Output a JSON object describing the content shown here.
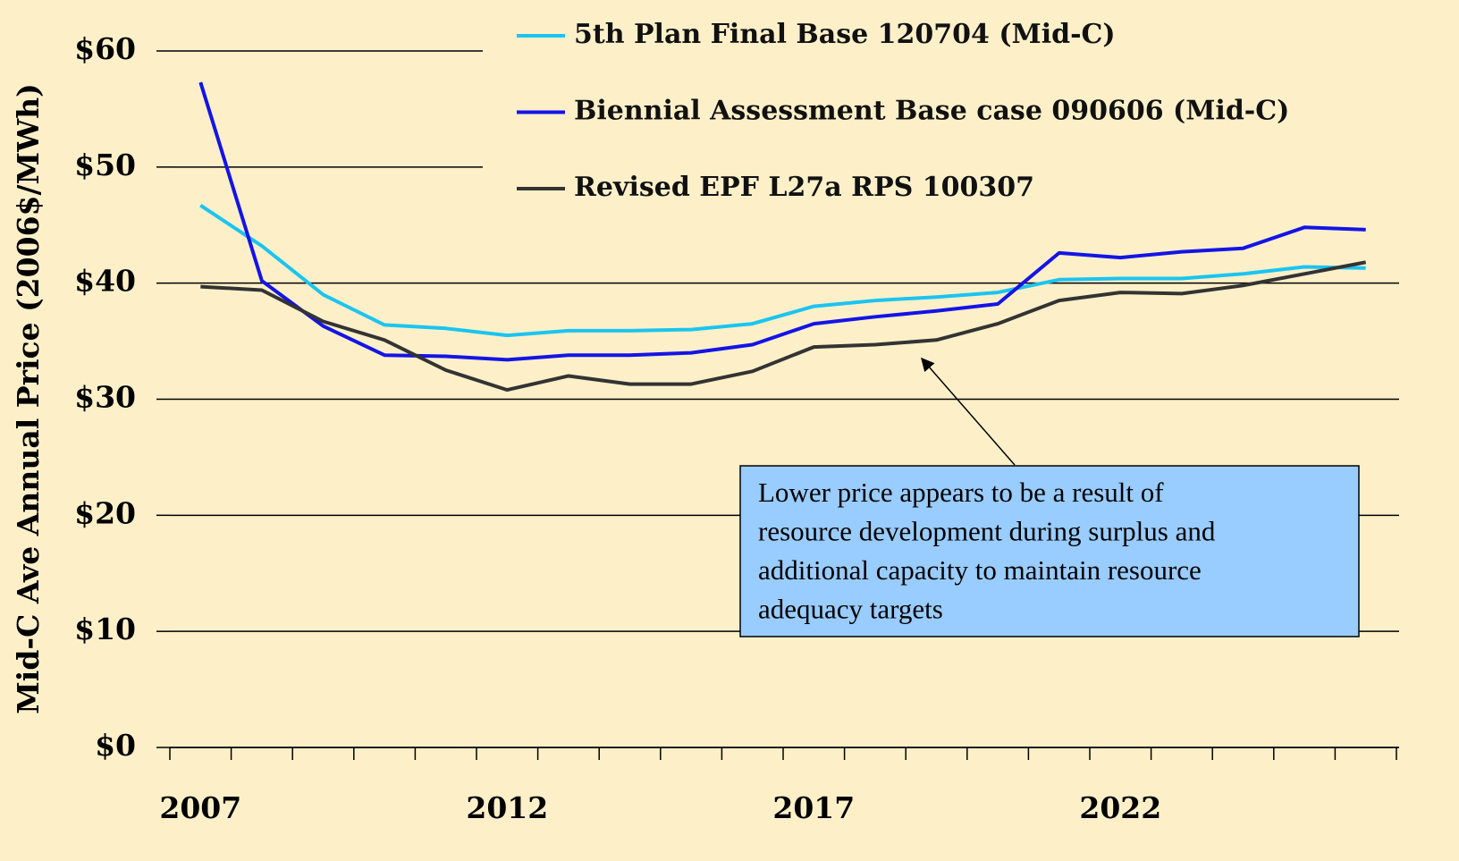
{
  "chart_data": {
    "type": "line",
    "ylabel": "Mid-C Ave Annual Price (2006$/MWh)",
    "categories": [
      "2007",
      null,
      null,
      null,
      null,
      "2012",
      null,
      null,
      null,
      null,
      "2017",
      null,
      null,
      null,
      null,
      "2022",
      null,
      null,
      null,
      null
    ],
    "series": [
      {
        "name": "5th Plan Final Base 120704 (Mid-C)",
        "color": "#1cc4f0",
        "values": [
          46.7,
          43.2,
          39.0,
          36.4,
          36.1,
          35.5,
          35.9,
          35.9,
          36.0,
          36.5,
          38.0,
          38.5,
          38.8,
          39.2,
          40.3,
          40.4,
          40.4,
          40.8,
          41.4,
          41.3
        ]
      },
      {
        "name": "Biennial Assessment Base case 090606 (Mid-C)",
        "color": "#1414e6",
        "values": [
          57.3,
          40.2,
          36.3,
          33.8,
          33.7,
          33.4,
          33.8,
          33.8,
          34.0,
          34.7,
          36.5,
          37.1,
          37.6,
          38.2,
          42.6,
          42.2,
          42.7,
          43.0,
          44.8,
          44.6
        ]
      },
      {
        "name": "Revised EPF L27a RPS 100307",
        "color": "#333333",
        "values": [
          39.7,
          39.4,
          36.7,
          35.1,
          32.5,
          30.8,
          32.0,
          31.3,
          31.3,
          32.4,
          34.5,
          34.7,
          35.1,
          36.5,
          38.5,
          39.2,
          39.1,
          39.8,
          40.8,
          41.8
        ]
      }
    ],
    "ylim": [
      0,
      60
    ],
    "yticks": [
      {
        "value": 0,
        "label": "$0"
      },
      {
        "value": 10,
        "label": "$10"
      },
      {
        "value": 20,
        "label": "$20"
      },
      {
        "value": 30,
        "label": "$30"
      },
      {
        "value": 40,
        "label": "$40"
      },
      {
        "value": 50,
        "label": "$50"
      },
      {
        "value": 60,
        "label": "$60"
      }
    ],
    "grid": true,
    "legend": "top",
    "annotation": [
      "Lower price appears to be a result of",
      "resource development during surplus and",
      "additional capacity to maintain resource",
      "adequacy targets"
    ]
  }
}
